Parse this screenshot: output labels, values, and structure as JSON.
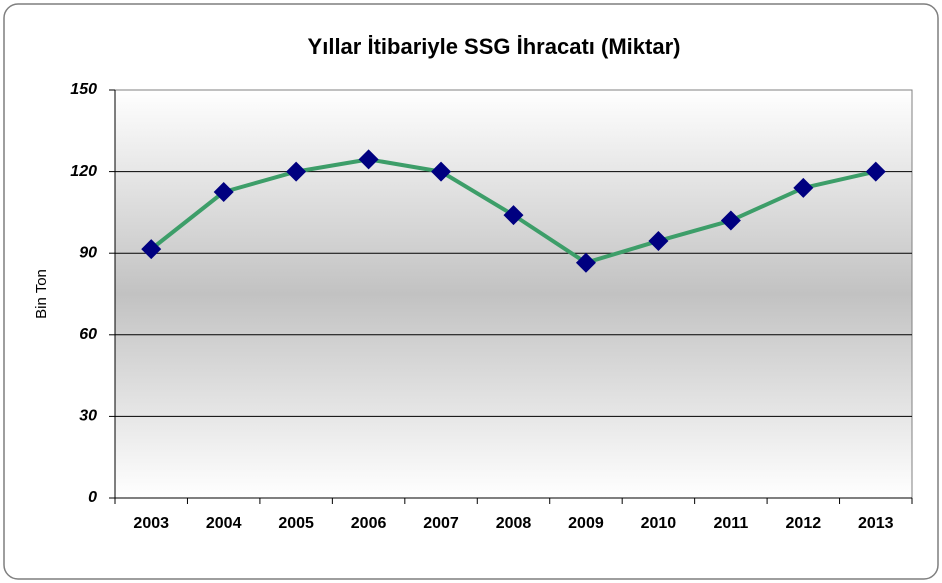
{
  "chart_data": {
    "type": "line",
    "title": "Yıllar İtibariyle SSG İhracatı (Miktar)",
    "y_label": "Bin Ton",
    "categories": [
      "2003",
      "2004",
      "2005",
      "2006",
      "2007",
      "2008",
      "2009",
      "2010",
      "2011",
      "2012",
      "2013"
    ],
    "values": [
      91.5,
      112.5,
      120,
      124.5,
      120,
      104,
      86.5,
      94.5,
      102,
      114,
      120
    ],
    "color": "#3d9e69",
    "marker_color": "#000080",
    "ylim": [
      0,
      150
    ],
    "yticks": [
      0,
      30,
      60,
      90,
      120,
      150
    ],
    "grid": true
  }
}
